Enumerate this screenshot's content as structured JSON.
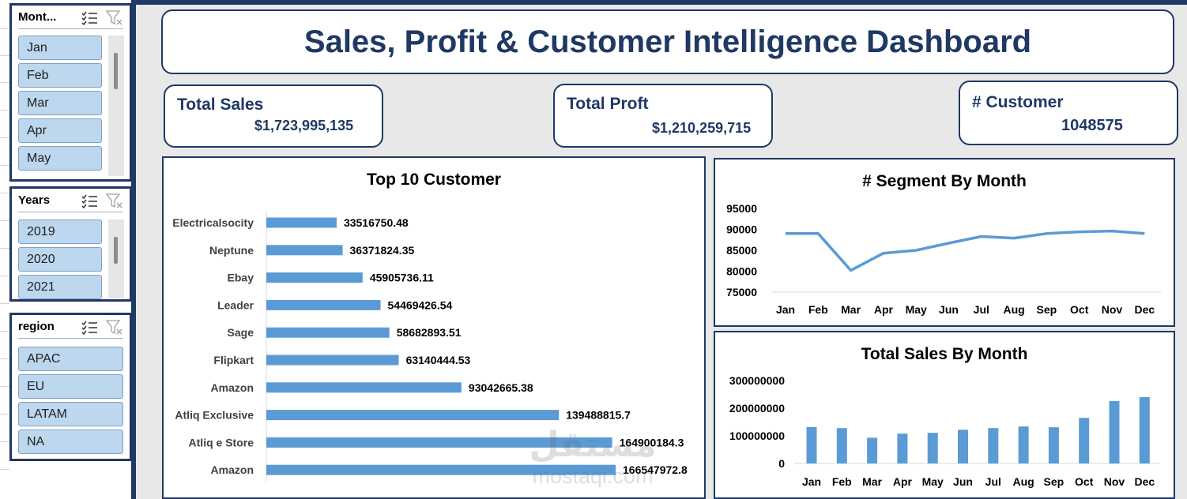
{
  "slicers": {
    "month": {
      "title": "Mont...",
      "items": [
        "Jan",
        "Feb",
        "Mar",
        "Apr",
        "May"
      ]
    },
    "years": {
      "title": "Years",
      "items": [
        "2019",
        "2020",
        "2021"
      ]
    },
    "region": {
      "title": "region",
      "items": [
        "APAC",
        "EU",
        "LATAM",
        "NA"
      ]
    }
  },
  "dashboard": {
    "title": "Sales, Profit & Customer Intelligence Dashboard",
    "kpis": {
      "total_sales": {
        "label": "Total Sales",
        "value": "$1,723,995,135"
      },
      "total_profit": {
        "label": "Total Proft",
        "value": "$1,210,259,715"
      },
      "customers": {
        "label": "# Customer",
        "value": "1048575"
      }
    }
  },
  "watermark": {
    "top": "مستقل",
    "bottom": "mostaqi.com"
  },
  "colors": {
    "navy": "#1f3864",
    "bar": "#5b9bd5",
    "slicer_item": "#bdd7ee"
  },
  "chart_data": [
    {
      "type": "bar",
      "orientation": "horizontal",
      "title": "Top 10 Customer",
      "categories": [
        "Electricalsocity",
        "Neptune",
        "Ebay",
        "Leader",
        "Sage",
        "Flipkart",
        "Amazon",
        "Atliq Exclusive",
        "Atliq e Store",
        "Amazon"
      ],
      "values": [
        33516750.48,
        36371824.35,
        45905736.11,
        54469426.54,
        58682893.51,
        63140444.53,
        93042665.38,
        139488815.7,
        164900184.3,
        166547972.8
      ],
      "value_labels": [
        "33516750.48",
        "36371824.35",
        "45905736.11",
        "54469426.54",
        "58682893.51",
        "63140444.53",
        "93042665.38",
        "139488815.7",
        "164900184.3",
        "166547972.8"
      ],
      "grid": false,
      "legend": "none"
    },
    {
      "type": "line",
      "title": "# Segment By Month",
      "categories": [
        "Jan",
        "Feb",
        "Mar",
        "Apr",
        "May",
        "Jun",
        "Jul",
        "Aug",
        "Sep",
        "Oct",
        "Nov",
        "Dec"
      ],
      "values": [
        89000,
        89000,
        80200,
        84300,
        85000,
        86700,
        88300,
        87900,
        89000,
        89400,
        89600,
        89000
      ],
      "y_ticks": [
        "95000",
        "90000",
        "85000",
        "80000",
        "75000"
      ],
      "ylim": [
        75000,
        95000
      ],
      "grid": false,
      "legend": "none"
    },
    {
      "type": "bar",
      "title": "Total Sales By Month",
      "categories": [
        "Jan",
        "Feb",
        "Mar",
        "Apr",
        "May",
        "Jun",
        "Jul",
        "Aug",
        "Sep",
        "Oct",
        "Nov",
        "Dec"
      ],
      "values": [
        132000000,
        128000000,
        93000000,
        108000000,
        111000000,
        122000000,
        128000000,
        134000000,
        131000000,
        165000000,
        226000000,
        240000000
      ],
      "y_ticks": [
        "300000000",
        "200000000",
        "100000000",
        "0"
      ],
      "ylim": [
        0,
        300000000
      ],
      "grid": false,
      "legend": "none"
    }
  ]
}
